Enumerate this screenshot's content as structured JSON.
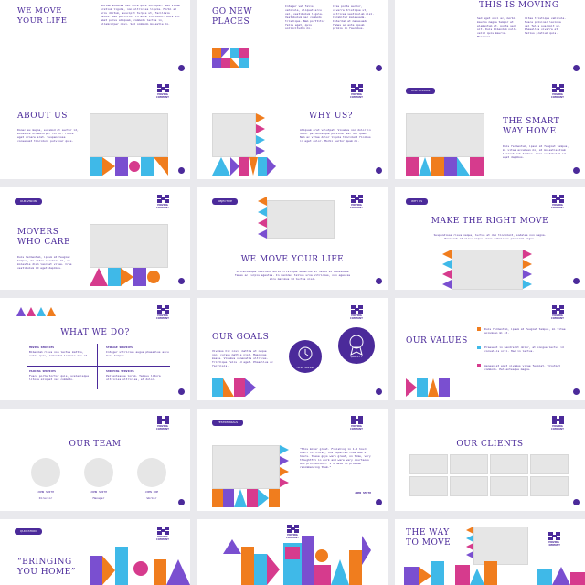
{
  "brand": {
    "logo_text": "MOVING COMPANY"
  },
  "colors": {
    "purple": "#4b2a9a",
    "orange": "#f07d1e",
    "cyan": "#3fb9e8",
    "pink": "#d63b8d",
    "violet": "#7a4fd0",
    "gray": "#e6e6e6"
  },
  "slides": {
    "s1": {
      "title": "WE MOVE YOUR LIFE",
      "body": "Nullam sodales nec ante quis volutpat. Sed vitae pretium ligula, non ultricies ligula. Morbi et arcu dictum, suscipit turpis ut, facilisis metus. Sed porttitor in ante tincidunt. Duis sit amet purus aliquam, commodo lectus in, ullamcorper nisi. Sed commodo molestie mi."
    },
    "s2": {
      "title": "GO NEW PLACES",
      "col1": "Integer vel felis vehicula, aliquet arcu vel, vestibulum ligula. Vestibulum nec commodo tristique. Nam porttitor felis eget, quis sollicitudin mi.",
      "col2": "Cras porta auctor, viverra tristique ut, ultrices vestibulum nisl. Curabitur malesuada. Interdum et malesuada fames ac ante ipsum primis in faucibus."
    },
    "s3": {
      "title": "THIS IS MOVING",
      "col1": "Sed eget orci ac, morbi mauris magna tempor et elementum at, porta sed sit. Duis bibendum nulla velit quis mauris. Maecenas.",
      "col2": "Vitae tristique vehicula. Fusce pulvinar lacinia vel felis suscipit ut. Phasellus viverra et tellus pretium quis."
    },
    "s4": {
      "title": "ABOUT US",
      "body": "Donec eu magna, euismod et auctor id, molestie ullamcorper tortor. Fusce eget ornare erat. Suspendisse consequat tincidunt pulvinar quis."
    },
    "s5": {
      "title": "WHY US?",
      "body": "Aliquam erat volutpat. Vivamus non dolor in dolor pellentesque pulvinar vel non quam. Nam ac vitae dolor ligula tincidunt finibus in eget dolor. Morbi auctor quam mi."
    },
    "s6": {
      "tag": "OUR MISSION",
      "title": "THE SMART WAY HOME",
      "body": "Duis fermentum, ipsum at feugiat tempus, mi vitae accumsan mi, at molestie diam laoreet est tortor. Cras vestibulum id eget dapibus."
    },
    "s7": {
      "tag": "OUR VISION",
      "title": "MOVERS WHO CARE",
      "body": "Duis fermentum, ipsum at feugiat tempus, mi vitae accumsan mi, at molestie diam laoreet vitae. Cras vestibulum id eget dapibus."
    },
    "s8": {
      "tag": "OBJECTIVE",
      "title": "WE MOVE YOUR LIFE",
      "body": "Pellentesque habitant morbi tristique senectus et netus et malesuada fames ac turpis egestas. In maximus tellus urna ultricies, non egestas arcu maximus id luctus nisi."
    },
    "s9": {
      "tag": "WHY US",
      "title": "MAKE THE RIGHT MOVE",
      "body": "Suspendisse risus neque, luctus et dui tincidunt, sodales non magna. Praesent at risus neque. Cras ultricies placerat magna."
    },
    "s10": {
      "title": "WHAT WE DO?",
      "items": [
        {
          "head": "MOVING SERVICES",
          "text": "Bibendum risus non lectus mattis, nulla quis, interdum lacinia leo et."
        },
        {
          "head": "STORAGE SERVICES",
          "text": "Integer ultricies augue phasellus arcu fuse tempus."
        },
        {
          "head": "PACKING SERVICES",
          "text": "Fusce porta tortor quis, scelerisque litora aliquet nec commodo."
        },
        {
          "head": "SHIPPING SERVICES",
          "text": "Pellentesque lorem. Tempus litora ultricies ultricies, et dolor."
        }
      ]
    },
    "s11": {
      "title": "OUR GOALS",
      "body": "Vivamus hic nisi, mattis et neque non, cursus mattis nisl. Maecenas massa. Vivamus venenatis ultrices. Tristique felis id eget. Phasellus ac facilisis.",
      "goals": [
        "TIME SAVING",
        "QUALITY"
      ]
    },
    "s12": {
      "title": "OUR VALUES",
      "items": [
        "Duis fermentum, ipsum at feugiat tempus, mi vitae accumsan mi at.",
        "Praesent in hendrerit dolor, at congue lectus id convallis orci. Hac in lectus.",
        "Aenean et eget vivamus vitae feugiat. Volutpat commodo. Pellentesque magna."
      ]
    },
    "s13": {
      "title": "OUR TEAM",
      "members": [
        {
          "name": "JOHN SMITH",
          "role": "Director"
        },
        {
          "name": "JOHN SMITH",
          "role": "Manager"
        },
        {
          "name": "JOHN DOE",
          "role": "Worker"
        }
      ]
    },
    "s14": {
      "tag": "TESTIMONIALS",
      "quote": "“This mover great. Finishing in 1.5 hours start to finish, the expected time was 4 hours. these guys were great, on time, very thoughtful in work and were very courteous and professional. I’d have no problem recommending them.”",
      "author": "JOHN SMITH"
    },
    "s15": {
      "title": "OUR CLIENTS"
    },
    "s16": {
      "tag": "QUOTATION",
      "title": "“BRINGING YOU HOME”"
    },
    "s18": {
      "title": "THE WAY TO MOVE"
    }
  }
}
